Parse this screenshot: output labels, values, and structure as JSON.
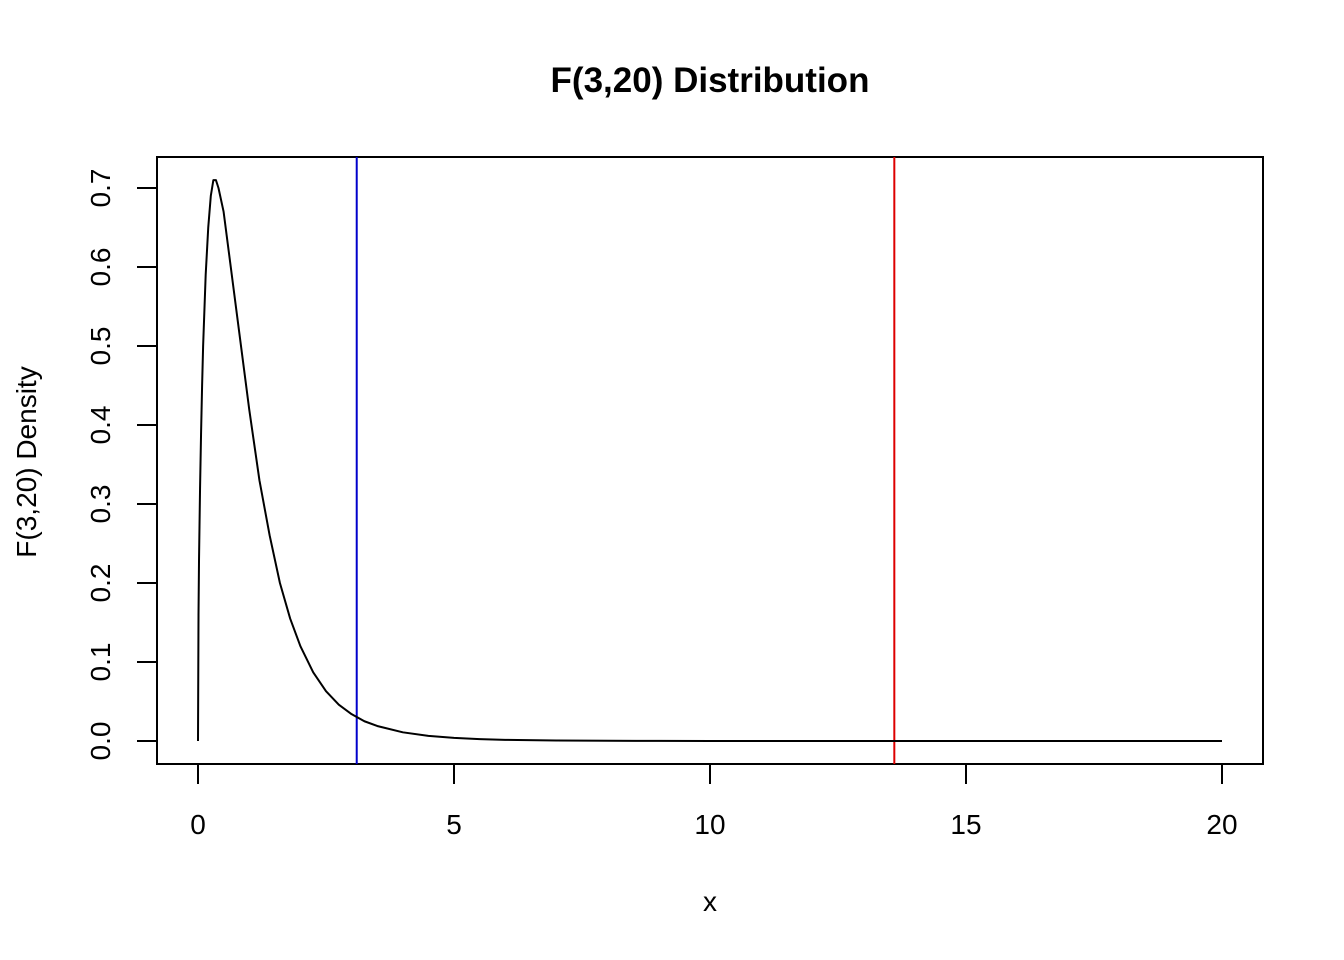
{
  "chart_data": {
    "type": "line",
    "title": "F(3,20) Distribution",
    "xlabel": "x",
    "ylabel": "F(3,20) Density",
    "xlim": [
      0,
      20
    ],
    "ylim": [
      0,
      0.7
    ],
    "x_ticks": [
      "0",
      "5",
      "10",
      "15",
      "20"
    ],
    "y_ticks": [
      "0.0",
      "0.1",
      "0.2",
      "0.3",
      "0.4",
      "0.5",
      "0.6",
      "0.7"
    ],
    "grid": false,
    "series": [
      {
        "color": "#000000",
        "x": [
          0,
          0.01,
          0.02,
          0.04,
          0.06,
          0.08,
          0.1,
          0.15,
          0.2,
          0.25,
          0.3,
          0.35,
          0.4,
          0.5,
          0.6,
          0.7,
          0.8,
          0.9,
          1.0,
          1.2,
          1.4,
          1.6,
          1.8,
          2.0,
          2.25,
          2.5,
          2.75,
          3.0,
          3.25,
          3.5,
          4.0,
          4.5,
          5.0,
          5.5,
          6.0,
          7.0,
          8.0,
          9.0,
          10.0,
          12.0,
          14.0,
          16.0,
          18.0,
          20.0
        ],
        "y": [
          0,
          0.16,
          0.23,
          0.32,
          0.39,
          0.45,
          0.5,
          0.59,
          0.65,
          0.69,
          0.71,
          0.71,
          0.7,
          0.67,
          0.62,
          0.57,
          0.52,
          0.47,
          0.42,
          0.33,
          0.26,
          0.2,
          0.155,
          0.12,
          0.087,
          0.063,
          0.046,
          0.034,
          0.025,
          0.019,
          0.011,
          0.0065,
          0.0039,
          0.0024,
          0.0015,
          0.0006,
          0.00026,
          0.00012,
          6e-05,
          1e-05,
          0.0,
          0.0,
          0.0,
          0.0
        ]
      }
    ],
    "vertical_lines": [
      {
        "x": 3.1,
        "color": "#0000cc"
      },
      {
        "x": 13.6,
        "color": "#dd0000"
      }
    ]
  }
}
